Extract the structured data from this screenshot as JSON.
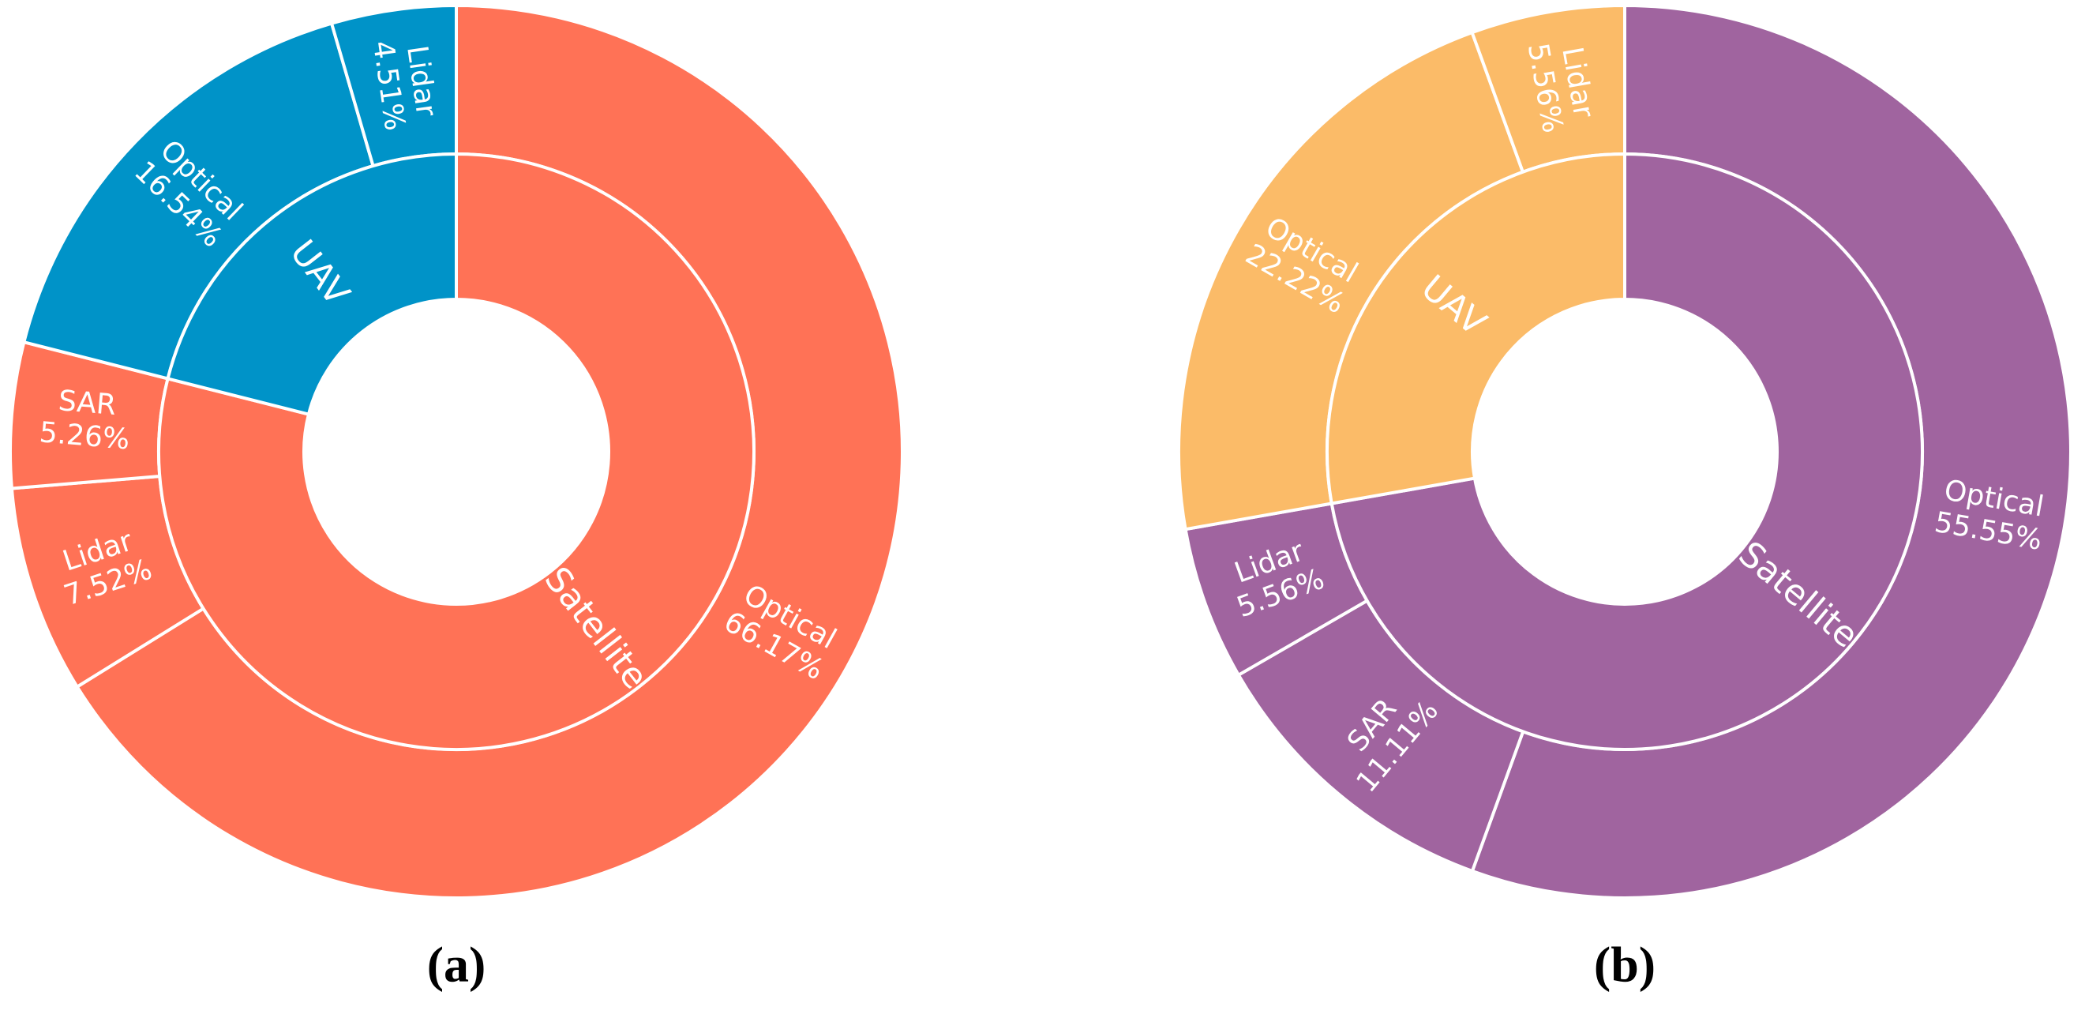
{
  "chart_data": [
    {
      "type": "sunburst",
      "caption": "(a)",
      "groups": [
        {
          "name": "Satellite",
          "color": "#ff7256",
          "categories": [
            "Optical",
            "Lidar",
            "SAR"
          ],
          "values": [
            66.17,
            7.52,
            5.26
          ],
          "value_labels": [
            "66.17%",
            "7.52%",
            "5.26%"
          ]
        },
        {
          "name": "UAV",
          "color": "#0093c8",
          "categories": [
            "Optical",
            "Lidar"
          ],
          "values": [
            16.54,
            4.51
          ],
          "value_labels": [
            "16.54%",
            "4.51%"
          ]
        }
      ]
    },
    {
      "type": "sunburst",
      "caption": "(b)",
      "groups": [
        {
          "name": "Satellite",
          "color": "#a0649f",
          "categories": [
            "Optical",
            "SAR",
            "Lidar"
          ],
          "values": [
            55.55,
            11.11,
            5.56
          ],
          "value_labels": [
            "55.55%",
            "11.11%",
            "5.56%"
          ]
        },
        {
          "name": "UAV",
          "color": "#fbbb68",
          "categories": [
            "Optical",
            "Lidar"
          ],
          "values": [
            22.22,
            5.56
          ],
          "value_labels": [
            "22.22%",
            "5.56%"
          ]
        }
      ]
    }
  ]
}
